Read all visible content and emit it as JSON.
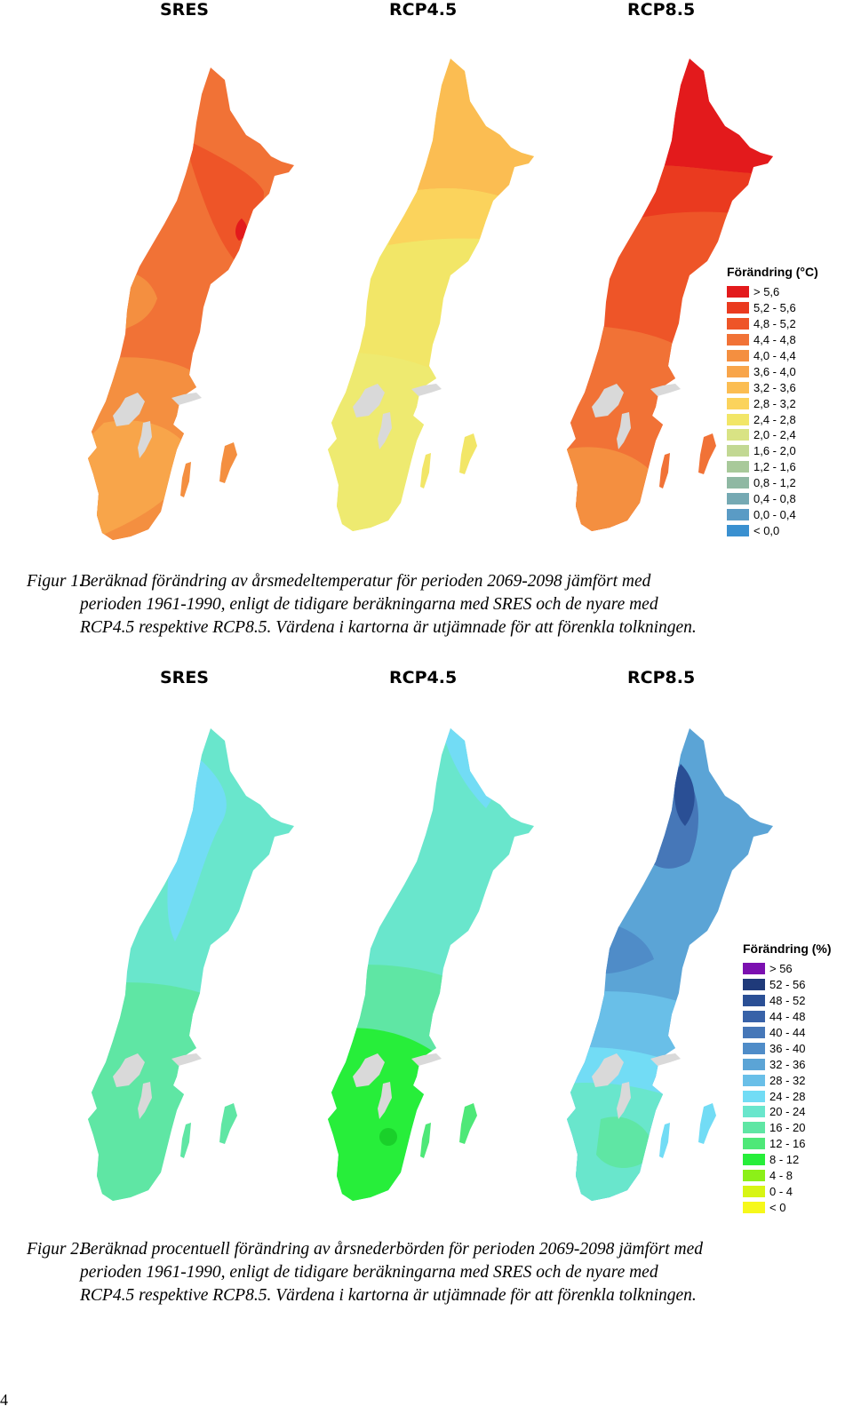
{
  "figure1": {
    "scenario_labels": [
      "SRES",
      "RCP4.5",
      "RCP8.5"
    ],
    "legend": {
      "title": "Förändring (°C)",
      "items": [
        {
          "label": "> 5,6",
          "color": "#e31a1c"
        },
        {
          "label": "5,2 - 5,6",
          "color": "#ea3a1f"
        },
        {
          "label": "4,8 - 5,2",
          "color": "#ee5528"
        },
        {
          "label": "4,4 - 4,8",
          "color": "#f17236"
        },
        {
          "label": "4,0 - 4,4",
          "color": "#f48f40"
        },
        {
          "label": "3,6 - 4,0",
          "color": "#f8a54a"
        },
        {
          "label": "3,2 - 3,6",
          "color": "#fbbd52"
        },
        {
          "label": "2,8 - 3,2",
          "color": "#fbd35c"
        },
        {
          "label": "2,4 - 2,8",
          "color": "#f2e667"
        },
        {
          "label": "2,0 - 2,4",
          "color": "#d9e384"
        },
        {
          "label": "1,6 - 2,0",
          "color": "#c2d893"
        },
        {
          "label": "1,2 - 1,6",
          "color": "#a8c99a"
        },
        {
          "label": "0,8 - 1,2",
          "color": "#8fb8a3"
        },
        {
          "label": "0,4 - 0,8",
          "color": "#75a9b3"
        },
        {
          "label": "0,0 - 0,4",
          "color": "#5a9bc5"
        },
        {
          "label": "< 0,0",
          "color": "#3a90d0"
        }
      ]
    },
    "caption": {
      "number": "Figur 1.",
      "lines": [
        "Beräknad förändring av årsmedeltemperatur för perioden 2069-2098 jämfört med",
        "perioden 1961-1990, enligt de tidigare beräkningarna med SRES och de nyare med",
        "RCP4.5 respektive RCP8.5. Värdena i kartorna är utjämnade för att förenkla tolkningen."
      ]
    }
  },
  "figure2": {
    "scenario_labels": [
      "SRES",
      "RCP4.5",
      "RCP8.5"
    ],
    "legend": {
      "title": "Förändring (%)",
      "items": [
        {
          "label": "> 56",
          "color": "#7b10b0"
        },
        {
          "label": "52 - 56",
          "color": "#1f3a7a"
        },
        {
          "label": "48 - 52",
          "color": "#2a4f95"
        },
        {
          "label": "44 - 48",
          "color": "#3862a8"
        },
        {
          "label": "40 - 44",
          "color": "#4677b8"
        },
        {
          "label": "36 - 40",
          "color": "#4f8cc8"
        },
        {
          "label": "32 - 36",
          "color": "#5ba4d6"
        },
        {
          "label": "28 - 32",
          "color": "#69bfe8"
        },
        {
          "label": "24 - 28",
          "color": "#72dcf5"
        },
        {
          "label": "20 - 24",
          "color": "#69e6cc"
        },
        {
          "label": "16 - 20",
          "color": "#5fe6a4"
        },
        {
          "label": "12 - 16",
          "color": "#4ee878"
        },
        {
          "label": "8 - 12",
          "color": "#27ee3a"
        },
        {
          "label": "4 - 8",
          "color": "#8cf018"
        },
        {
          "label": "0 - 4",
          "color": "#d7f514"
        },
        {
          "label": "< 0",
          "color": "#f6f81a"
        }
      ]
    },
    "caption": {
      "number": "Figur 2.",
      "lines": [
        "Beräknad procentuell förändring av årsnederbörden för perioden 2069-2098 jämfört med",
        "perioden 1961-1990, enligt de tidigare beräkningarna med SRES och de nyare med",
        "RCP4.5 respektive RCP8.5. Värdena i kartorna är utjämnade för att förenkla tolkningen."
      ]
    }
  },
  "page_number": "4"
}
